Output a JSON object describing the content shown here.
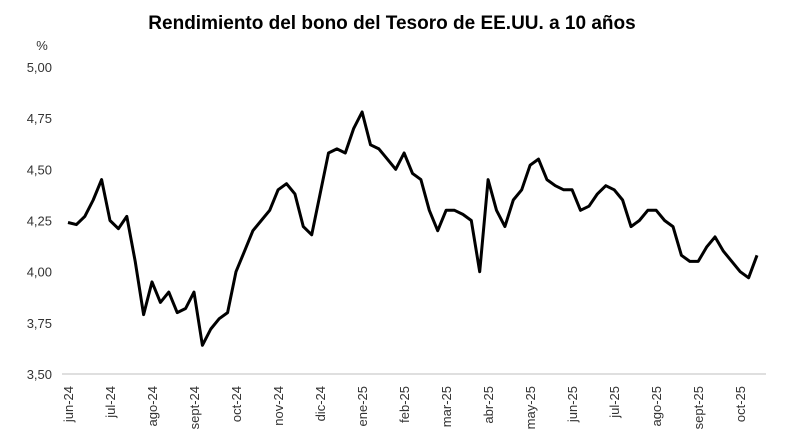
{
  "chart_data": {
    "type": "line",
    "title": "Rendimiento del bono del Tesoro de EE.UU. a 10 años",
    "y_label": "%",
    "categories": [
      "jun-24",
      null,
      null,
      null,
      null,
      "jul-24",
      null,
      null,
      null,
      null,
      "ago-24",
      null,
      null,
      null,
      null,
      "sept-24",
      null,
      null,
      null,
      null,
      "oct-24",
      null,
      null,
      null,
      null,
      "nov-24",
      null,
      null,
      null,
      null,
      "dic-24",
      null,
      null,
      null,
      null,
      "ene-25",
      null,
      null,
      null,
      null,
      "feb-25",
      null,
      null,
      null,
      null,
      "mar-25",
      null,
      null,
      null,
      null,
      "abr-25",
      null,
      null,
      null,
      null,
      "may-25",
      null,
      null,
      null,
      null,
      "jun-25",
      null,
      null,
      null,
      null,
      "jul-25",
      null,
      null,
      null,
      null,
      "ago-25",
      null,
      null,
      null,
      null,
      "sept-25",
      null,
      null,
      null,
      null,
      "oct-25",
      null,
      null
    ],
    "values": [
      4.24,
      4.23,
      4.27,
      4.35,
      4.45,
      4.25,
      4.21,
      4.27,
      4.05,
      3.79,
      3.95,
      3.85,
      3.9,
      3.8,
      3.82,
      3.9,
      3.64,
      3.72,
      3.77,
      3.8,
      4.0,
      4.1,
      4.2,
      4.25,
      4.3,
      4.4,
      4.43,
      4.38,
      4.22,
      4.18,
      4.38,
      4.58,
      4.6,
      4.58,
      4.7,
      4.78,
      4.62,
      4.6,
      4.55,
      4.5,
      4.58,
      4.48,
      4.45,
      4.3,
      4.2,
      4.3,
      4.3,
      4.28,
      4.25,
      4.0,
      4.45,
      4.3,
      4.22,
      4.35,
      4.4,
      4.52,
      4.55,
      4.45,
      4.42,
      4.4,
      4.4,
      4.3,
      4.32,
      4.38,
      4.42,
      4.4,
      4.35,
      4.22,
      4.25,
      4.3,
      4.3,
      4.25,
      4.22,
      4.08,
      4.05,
      4.05,
      4.12,
      4.17,
      4.1,
      4.05,
      4.0,
      3.97,
      4.08
    ],
    "color": "#000000",
    "ylim": [
      3.5,
      5.0
    ],
    "yticks": [
      {
        "value": 3.5,
        "label": "3,50"
      },
      {
        "value": 3.75,
        "label": "3,75"
      },
      {
        "value": 4.0,
        "label": "4,00"
      },
      {
        "value": 4.25,
        "label": "4,25"
      },
      {
        "value": 4.5,
        "label": "4,50"
      },
      {
        "value": 4.75,
        "label": "4,75"
      },
      {
        "value": 5.0,
        "label": "5,00"
      }
    ],
    "grid": false
  }
}
